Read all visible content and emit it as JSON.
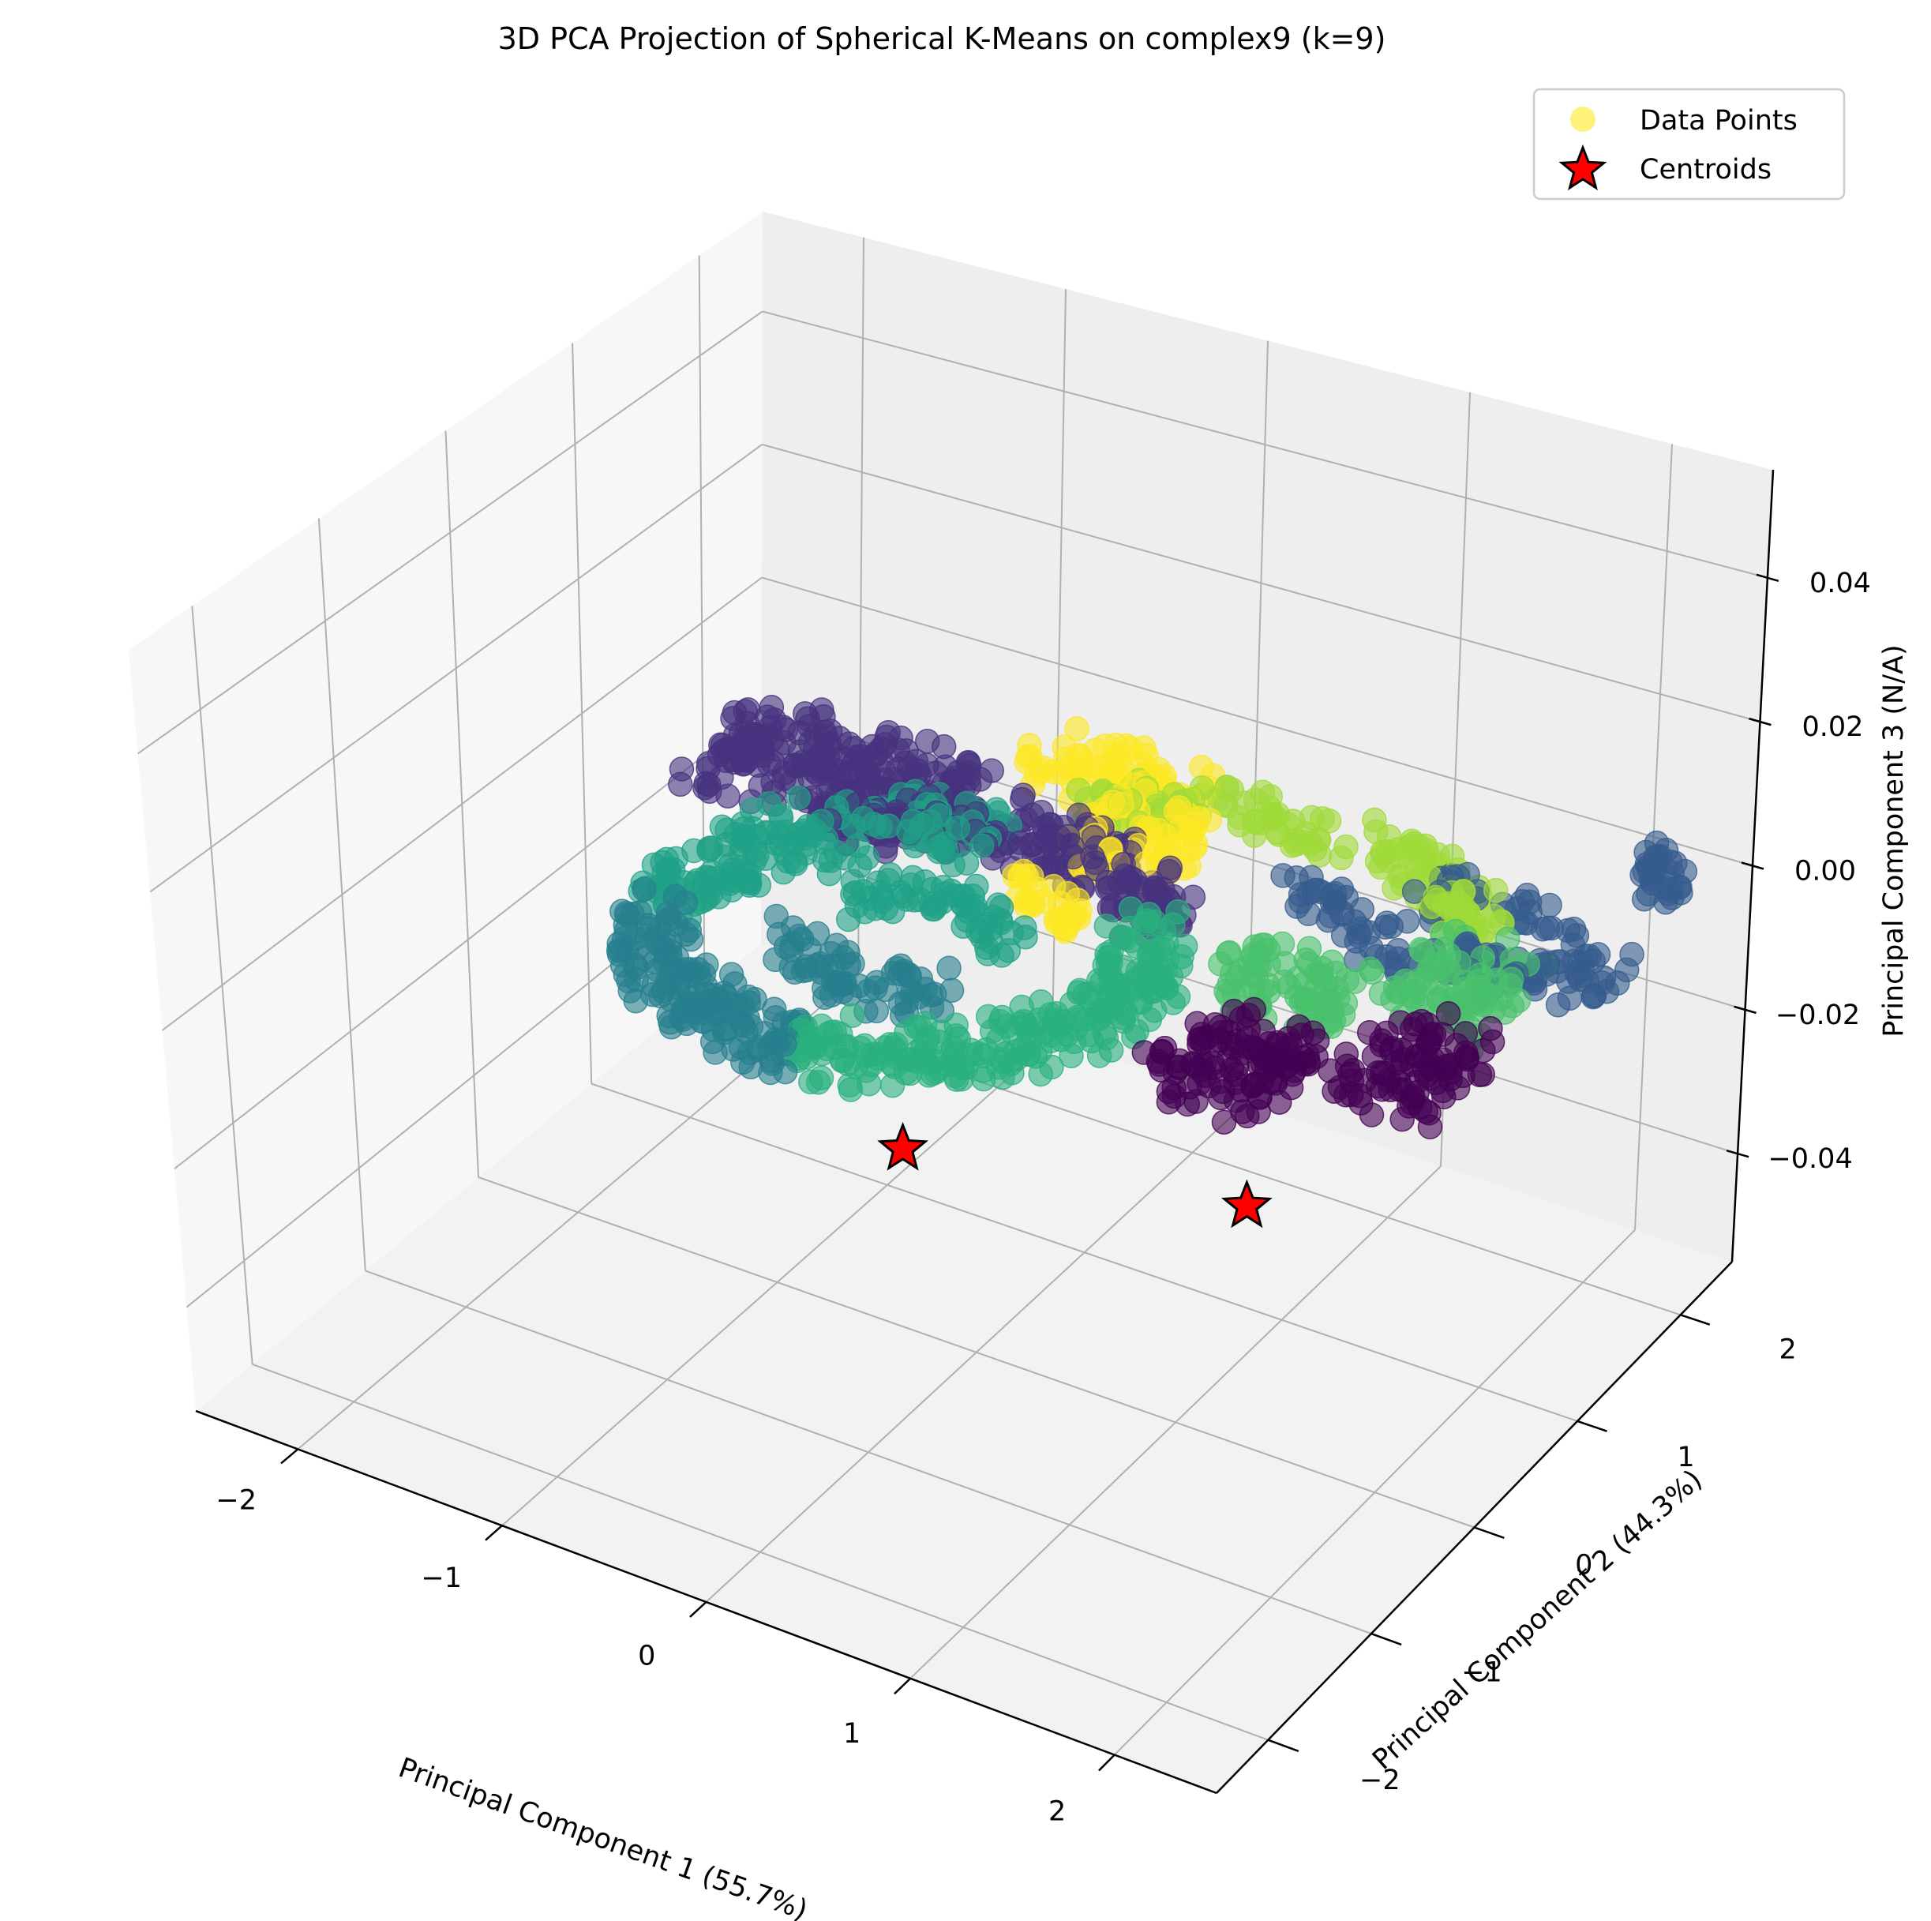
{
  "chart_data": {
    "type": "scatter",
    "title": "3D PCA Projection of Spherical K-Means on complex9 (k=9)",
    "xlabel": "Principal Component 1 (55.7%)",
    "ylabel": "Principal Component 2 (44.3%)",
    "zlabel": "Principal Component 3 (N/A)",
    "xticks": [
      -2,
      -1,
      0,
      1,
      2
    ],
    "yticks": [
      -2,
      -1,
      0,
      1,
      2
    ],
    "zticks": [
      -0.04,
      -0.02,
      0.0,
      0.02,
      0.04
    ],
    "xlim": [
      -2.5,
      2.5
    ],
    "ylim": [
      -2.5,
      2.5
    ],
    "zlim": [
      -0.055,
      0.055
    ],
    "grid": true,
    "legend": {
      "placement": "top-right",
      "entries": [
        {
          "label": "Data Points",
          "color": "#fde725"
        },
        {
          "label": "Centroids",
          "color": "#ff0000"
        }
      ]
    },
    "colormap": [
      "#440154",
      "#46327e",
      "#365c8d",
      "#277f8e",
      "#1fa187",
      "#2ab07f",
      "#4ac16d",
      "#a0da39",
      "#fde725"
    ],
    "clusters": [
      {
        "color_index": 0,
        "shapes": [
          {
            "kind": "rect",
            "x": [
              1.15,
              1.7
            ],
            "y": [
              -0.6,
              0.2
            ]
          },
          {
            "kind": "rect",
            "x": [
              1.85,
              2.35
            ],
            "y": [
              -0.2,
              0.5
            ]
          }
        ]
      },
      {
        "color_index": 1,
        "shapes": [
          {
            "kind": "rect",
            "x": [
              -1.9,
              -0.7
            ],
            "y": [
              0.8,
              1.5
            ]
          },
          {
            "kind": "arc",
            "cx": -0.3,
            "cy": 0.0,
            "rx": 1.1,
            "ry": 1.1,
            "a0": 40,
            "a1": 140,
            "w": 0.35
          }
        ]
      },
      {
        "color_index": 2,
        "shapes": [
          {
            "kind": "arc",
            "cx": 1.65,
            "cy": 1.45,
            "rx": 0.75,
            "ry": 0.4,
            "a0": 200,
            "a1": 360,
            "w": 0.22
          },
          {
            "kind": "arc",
            "cx": 1.75,
            "cy": 1.45,
            "rx": 0.35,
            "ry": 0.2,
            "a0": 0,
            "a1": 180,
            "w": 0.15
          },
          {
            "kind": "rect",
            "x": [
              2.1,
              2.3
            ],
            "y": [
              2.1,
              2.3
            ]
          }
        ]
      },
      {
        "color_index": 3,
        "shapes": [
          {
            "kind": "arc",
            "cx": -0.3,
            "cy": -0.05,
            "rx": 1.05,
            "ry": 1.05,
            "a0": 195,
            "a1": 275,
            "w": 0.35
          },
          {
            "kind": "arc",
            "cx": -0.3,
            "cy": -0.05,
            "rx": 0.45,
            "ry": 0.45,
            "a0": 200,
            "a1": 330,
            "w": 0.22
          }
        ]
      },
      {
        "color_index": 4,
        "shapes": [
          {
            "kind": "arc",
            "cx": -0.3,
            "cy": -0.05,
            "rx": 1.05,
            "ry": 1.05,
            "a0": 95,
            "a1": 195,
            "w": 0.35
          },
          {
            "kind": "arc",
            "cx": -0.3,
            "cy": -0.05,
            "rx": 0.45,
            "ry": 0.45,
            "a0": 30,
            "a1": 160,
            "w": 0.22
          }
        ]
      },
      {
        "color_index": 5,
        "shapes": [
          {
            "kind": "arc",
            "cx": -0.3,
            "cy": -0.05,
            "rx": 1.05,
            "ry": 1.05,
            "a0": 275,
            "a1": 400,
            "w": 0.35
          }
        ]
      },
      {
        "color_index": 6,
        "shapes": [
          {
            "kind": "rect",
            "x": [
              1.0,
              1.6
            ],
            "y": [
              0.25,
              0.75
            ]
          },
          {
            "kind": "rect",
            "x": [
              1.7,
              2.2
            ],
            "y": [
              0.55,
              1.25
            ]
          }
        ]
      },
      {
        "color_index": 7,
        "shapes": [
          {
            "kind": "arc",
            "cx": 0.75,
            "cy": 1.2,
            "rx": 1.0,
            "ry": 0.6,
            "a0": 20,
            "a1": 160,
            "w": 0.28
          }
        ]
      },
      {
        "color_index": 8,
        "shapes": [
          {
            "kind": "rect",
            "x": [
              -0.7,
              0.2
            ],
            "y": [
              1.55,
              1.9
            ]
          },
          {
            "kind": "rect",
            "x": [
              -0.15,
              0.35
            ],
            "y": [
              1.0,
              1.55
            ]
          },
          {
            "kind": "rect",
            "x": [
              -0.2,
              0.2
            ],
            "y": [
              0.55,
              0.75
            ]
          }
        ]
      }
    ],
    "centroids": [
      {
        "x": -0.35,
        "y": 0.0,
        "z": -0.03
      },
      {
        "x": 1.2,
        "y": 0.3,
        "z": -0.028
      }
    ]
  }
}
